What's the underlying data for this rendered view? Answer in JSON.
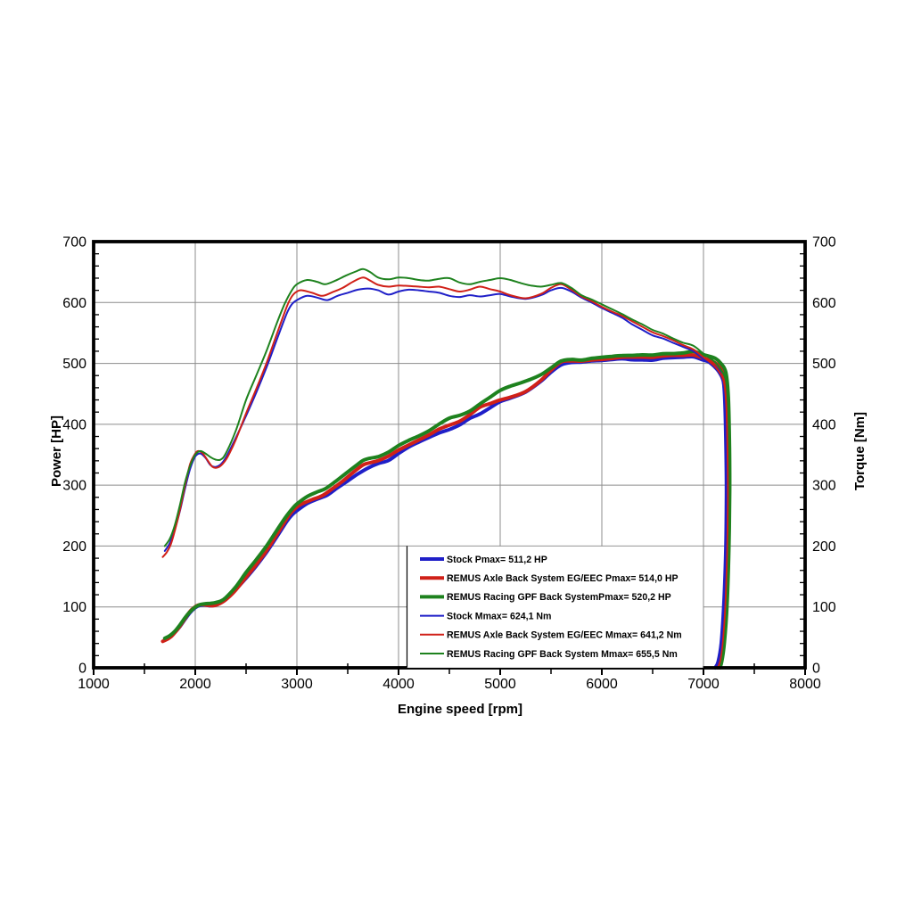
{
  "chart_data": {
    "type": "line",
    "title": "",
    "xlabel": "Engine speed [rpm]",
    "ylabel_left": "Power [HP]",
    "ylabel_right": "Torque [Nm]",
    "x_axis": {
      "min": 1000,
      "max": 8000,
      "major_step": 1000,
      "minor_step": 500
    },
    "y_axis_left": {
      "min": 0,
      "max": 700,
      "major_step": 100,
      "minor_step": 20
    },
    "y_axis_right": {
      "min": 0,
      "max": 700,
      "major_step": 100,
      "minor_step": 20
    },
    "grid": true,
    "legend_position": "inside-bottom-right",
    "power_formula": "power_HP = torque_Nm * rpm / 7023",
    "colors": {
      "stock": "#1f1fc8",
      "remus_axle": "#d02018",
      "remus_gpf": "#1e821e",
      "grid": "#8c8c8c",
      "axis": "#000000"
    },
    "series": [
      {
        "id": "stock_power",
        "kind": "power",
        "derived_from": "stock_torque",
        "color_key": "stock",
        "line_width": 4,
        "legend_label": "Stock Pmax= 511,2 HP",
        "pmax_hp": "511,2"
      },
      {
        "id": "remus_axle_power",
        "kind": "power",
        "derived_from": "remus_axle_torque",
        "color_key": "remus_axle",
        "line_width": 4,
        "legend_label": "REMUS Axle Back System EG/EEC Pmax=  514,0 HP",
        "pmax_hp": "514,0"
      },
      {
        "id": "remus_gpf_power",
        "kind": "power",
        "derived_from": "remus_gpf_torque",
        "color_key": "remus_gpf",
        "line_width": 4,
        "legend_label": "REMUS Racing GPF Back SystemPmax= 520,2 HP",
        "pmax_hp": "520,2"
      },
      {
        "id": "stock_torque",
        "kind": "torque",
        "color_key": "stock",
        "line_width": 2,
        "legend_label": "Stock Mmax= 624,1 Nm",
        "mmax_nm": "624,1",
        "points": [
          [
            1700,
            192
          ],
          [
            1750,
            205
          ],
          [
            1800,
            228
          ],
          [
            1850,
            258
          ],
          [
            1900,
            295
          ],
          [
            1950,
            327
          ],
          [
            2000,
            347
          ],
          [
            2050,
            352
          ],
          [
            2100,
            345
          ],
          [
            2150,
            333
          ],
          [
            2200,
            330
          ],
          [
            2250,
            334
          ],
          [
            2300,
            345
          ],
          [
            2400,
            378
          ],
          [
            2500,
            414
          ],
          [
            2600,
            452
          ],
          [
            2700,
            493
          ],
          [
            2800,
            538
          ],
          [
            2900,
            582
          ],
          [
            2950,
            597
          ],
          [
            3000,
            604
          ],
          [
            3100,
            611
          ],
          [
            3200,
            608
          ],
          [
            3300,
            604
          ],
          [
            3400,
            611
          ],
          [
            3500,
            616
          ],
          [
            3600,
            621
          ],
          [
            3700,
            623
          ],
          [
            3800,
            620
          ],
          [
            3900,
            613
          ],
          [
            4000,
            618
          ],
          [
            4100,
            621
          ],
          [
            4200,
            620
          ],
          [
            4300,
            618
          ],
          [
            4400,
            616
          ],
          [
            4500,
            611
          ],
          [
            4600,
            609
          ],
          [
            4700,
            612
          ],
          [
            4800,
            610
          ],
          [
            4900,
            612
          ],
          [
            5000,
            614
          ],
          [
            5100,
            610
          ],
          [
            5250,
            606
          ],
          [
            5400,
            612
          ],
          [
            5500,
            620
          ],
          [
            5600,
            624
          ],
          [
            5700,
            618
          ],
          [
            5800,
            608
          ],
          [
            5900,
            600
          ],
          [
            6000,
            591
          ],
          [
            6100,
            583
          ],
          [
            6200,
            575
          ],
          [
            6300,
            564
          ],
          [
            6400,
            555
          ],
          [
            6500,
            546
          ],
          [
            6600,
            541
          ],
          [
            6700,
            534
          ],
          [
            6800,
            527
          ],
          [
            6900,
            520
          ],
          [
            7000,
            507
          ],
          [
            7050,
            501
          ],
          [
            7100,
            494
          ],
          [
            7150,
            484
          ],
          [
            7190,
            468
          ],
          [
            7210,
            430
          ],
          [
            7222,
            350
          ],
          [
            7226,
            280
          ],
          [
            7220,
            190
          ],
          [
            7200,
            100
          ],
          [
            7175,
            40
          ],
          [
            7145,
            10
          ],
          [
            7115,
            0
          ]
        ]
      },
      {
        "id": "remus_axle_torque",
        "kind": "torque",
        "color_key": "remus_axle",
        "line_width": 2,
        "legend_label": "REMUS Axle Back System EG/EEC Mmax= 641,2 Nm",
        "mmax_nm": "641,2",
        "points": [
          [
            1680,
            182
          ],
          [
            1720,
            190
          ],
          [
            1760,
            203
          ],
          [
            1800,
            226
          ],
          [
            1850,
            260
          ],
          [
            1900,
            300
          ],
          [
            1950,
            335
          ],
          [
            2000,
            352
          ],
          [
            2030,
            356
          ],
          [
            2070,
            353
          ],
          [
            2120,
            341
          ],
          [
            2170,
            330
          ],
          [
            2220,
            329
          ],
          [
            2270,
            335
          ],
          [
            2320,
            347
          ],
          [
            2400,
            375
          ],
          [
            2500,
            418
          ],
          [
            2600,
            458
          ],
          [
            2700,
            500
          ],
          [
            2800,
            547
          ],
          [
            2900,
            593
          ],
          [
            2950,
            610
          ],
          [
            3000,
            618
          ],
          [
            3050,
            620
          ],
          [
            3150,
            616
          ],
          [
            3250,
            611
          ],
          [
            3350,
            617
          ],
          [
            3450,
            624
          ],
          [
            3550,
            634
          ],
          [
            3650,
            641
          ],
          [
            3720,
            636
          ],
          [
            3800,
            629
          ],
          [
            3900,
            626
          ],
          [
            4000,
            628
          ],
          [
            4100,
            627
          ],
          [
            4200,
            626
          ],
          [
            4300,
            625
          ],
          [
            4400,
            626
          ],
          [
            4500,
            622
          ],
          [
            4600,
            618
          ],
          [
            4700,
            621
          ],
          [
            4800,
            626
          ],
          [
            4900,
            622
          ],
          [
            5000,
            618
          ],
          [
            5100,
            612
          ],
          [
            5250,
            607
          ],
          [
            5400,
            614
          ],
          [
            5500,
            624
          ],
          [
            5600,
            630
          ],
          [
            5700,
            621
          ],
          [
            5800,
            610
          ],
          [
            5900,
            602
          ],
          [
            6000,
            593
          ],
          [
            6100,
            585
          ],
          [
            6200,
            578
          ],
          [
            6300,
            569
          ],
          [
            6400,
            560
          ],
          [
            6500,
            551
          ],
          [
            6600,
            545
          ],
          [
            6700,
            538
          ],
          [
            6800,
            530
          ],
          [
            6900,
            523
          ],
          [
            7000,
            510
          ],
          [
            7050,
            504
          ],
          [
            7100,
            497
          ],
          [
            7150,
            487
          ],
          [
            7200,
            470
          ],
          [
            7225,
            430
          ],
          [
            7237,
            350
          ],
          [
            7240,
            280
          ],
          [
            7233,
            190
          ],
          [
            7215,
            100
          ],
          [
            7190,
            40
          ],
          [
            7165,
            10
          ],
          [
            7140,
            0
          ]
        ]
      },
      {
        "id": "remus_gpf_torque",
        "kind": "torque",
        "color_key": "remus_gpf",
        "line_width": 2,
        "legend_label": "REMUS Racing GPF Back System Mmax= 655,5 Nm",
        "mmax_nm": "655,5",
        "points": [
          [
            1700,
            200
          ],
          [
            1750,
            212
          ],
          [
            1800,
            235
          ],
          [
            1850,
            268
          ],
          [
            1900,
            305
          ],
          [
            1950,
            332
          ],
          [
            2000,
            350
          ],
          [
            2050,
            356
          ],
          [
            2100,
            352
          ],
          [
            2150,
            346
          ],
          [
            2200,
            342
          ],
          [
            2250,
            342
          ],
          [
            2300,
            352
          ],
          [
            2400,
            390
          ],
          [
            2500,
            440
          ],
          [
            2600,
            480
          ],
          [
            2700,
            520
          ],
          [
            2800,
            565
          ],
          [
            2880,
            598
          ],
          [
            2950,
            620
          ],
          [
            3000,
            630
          ],
          [
            3100,
            637
          ],
          [
            3200,
            634
          ],
          [
            3280,
            630
          ],
          [
            3380,
            636
          ],
          [
            3480,
            644
          ],
          [
            3580,
            651
          ],
          [
            3650,
            655
          ],
          [
            3720,
            650
          ],
          [
            3800,
            641
          ],
          [
            3900,
            638
          ],
          [
            4000,
            641
          ],
          [
            4100,
            640
          ],
          [
            4200,
            637
          ],
          [
            4300,
            636
          ],
          [
            4400,
            639
          ],
          [
            4500,
            640
          ],
          [
            4600,
            633
          ],
          [
            4700,
            630
          ],
          [
            4800,
            634
          ],
          [
            4900,
            637
          ],
          [
            5000,
            640
          ],
          [
            5100,
            637
          ],
          [
            5200,
            632
          ],
          [
            5300,
            628
          ],
          [
            5400,
            626
          ],
          [
            5500,
            629
          ],
          [
            5600,
            632
          ],
          [
            5700,
            624
          ],
          [
            5800,
            612
          ],
          [
            5900,
            605
          ],
          [
            6000,
            597
          ],
          [
            6100,
            589
          ],
          [
            6200,
            581
          ],
          [
            6300,
            572
          ],
          [
            6400,
            564
          ],
          [
            6500,
            555
          ],
          [
            6600,
            549
          ],
          [
            6700,
            541
          ],
          [
            6800,
            534
          ],
          [
            6900,
            529
          ],
          [
            7000,
            516
          ],
          [
            7060,
            509
          ],
          [
            7120,
            501
          ],
          [
            7170,
            490
          ],
          [
            7220,
            472
          ],
          [
            7245,
            430
          ],
          [
            7256,
            350
          ],
          [
            7258,
            280
          ],
          [
            7250,
            190
          ],
          [
            7232,
            100
          ],
          [
            7205,
            40
          ],
          [
            7180,
            10
          ],
          [
            7160,
            0
          ]
        ]
      }
    ]
  }
}
